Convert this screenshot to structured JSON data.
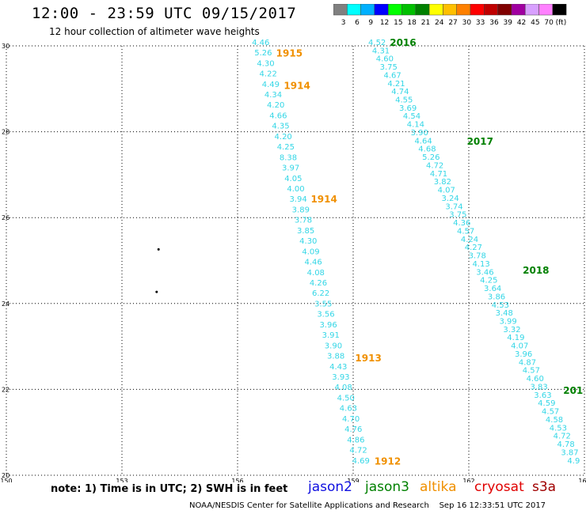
{
  "title": "12:00 - 23:59 UTC 09/15/2017",
  "subtitle": "12 hour collection of altimeter wave heights",
  "colorbar": {
    "colors": [
      "#808080",
      "#00ffff",
      "#00b0ff",
      "#0000ff",
      "#00ff00",
      "#00c000",
      "#008000",
      "#ffff00",
      "#ffc000",
      "#ff8000",
      "#ff0000",
      "#c00000",
      "#800000",
      "#a000a0",
      "#d8a0ff",
      "#ff80ff",
      "#000000"
    ],
    "labels": [
      "3",
      "6",
      "9",
      "12",
      "15",
      "18",
      "21",
      "24",
      "27",
      "30",
      "33",
      "36",
      "39",
      "42",
      "45",
      "70",
      "(ft)"
    ]
  },
  "map": {
    "lat_labels": [
      "30",
      "28",
      "26",
      "24",
      "22",
      "20"
    ],
    "lon_labels": [
      "150",
      "153",
      "156",
      "159",
      "162",
      "165"
    ],
    "lat_range": [
      20,
      30
    ],
    "lon_range": [
      150,
      165
    ],
    "grid": "dotted"
  },
  "islands": [
    {
      "lon": 153.95,
      "lat": 25.26
    },
    {
      "lon": 153.9,
      "lat": 24.27
    }
  ],
  "tracks": [
    {
      "satellite": "altika",
      "color": "#33d6e6",
      "start": {
        "lon": 156.6,
        "lat": 30.02
      },
      "end": {
        "lon": 159.2,
        "lat": 20.28
      },
      "values": [
        "4.46",
        "5.26",
        "4.30",
        "4.22",
        "4.49",
        "4.34",
        "4.20",
        "4.66",
        "4.35",
        "4.20",
        "4.25",
        "8.38",
        "3.97",
        "4.05",
        "4.00",
        "3.94",
        "3.89",
        "3.78",
        "3.85",
        "4.30",
        "4.09",
        "4.46",
        "4.08",
        "4.26",
        "6.22",
        "3.55",
        "3.56",
        "3.96",
        "3.91",
        "3.90",
        "3.88",
        "4.43",
        "3.93",
        "4.08",
        "4.50",
        "4.63",
        "4.70",
        "4.76",
        "4.86",
        "4.72",
        "4.69"
      ],
      "time_labels": [
        {
          "text": "1915",
          "lon": 157.0,
          "lat": 29.75
        },
        {
          "text": "1914",
          "lon": 157.2,
          "lat": 29.0
        },
        {
          "text": "1914",
          "lon": 157.9,
          "lat": 26.35
        },
        {
          "text": "1913",
          "lon": 159.05,
          "lat": 22.65
        },
        {
          "text": "1912",
          "lon": 159.55,
          "lat": 20.25
        }
      ],
      "time_color": "#f09000"
    },
    {
      "satellite": "jason3",
      "color": "#33d6e6",
      "start": {
        "lon": 159.62,
        "lat": 30.02
      },
      "end": {
        "lon": 164.72,
        "lat": 20.28
      },
      "values": [
        "4.52",
        "4.31",
        "4.60",
        "3.75",
        "4.67",
        "4.21",
        "4.74",
        "4.55",
        "3.69",
        "4.54",
        "4.14",
        "3.90",
        "4.64",
        "4.68",
        "5.26",
        "4.72",
        "4.71",
        "3.82",
        "4.07",
        "3.24",
        "3.74",
        "3.75",
        "4.36",
        "4.57",
        "4.24",
        "4.27",
        "3.78",
        "4.13",
        "3.46",
        "4.25",
        "3.64",
        "3.86",
        "4.53",
        "3.48",
        "3.99",
        "3.32",
        "4.19",
        "4.07",
        "3.96",
        "4.87",
        "4.57",
        "4.60",
        "3.83",
        "3.63",
        "4.59",
        "4.57",
        "4.58",
        "4.53",
        "4.72",
        "4.78",
        "3.87",
        "4.9"
      ],
      "time_labels": [
        {
          "text": "2016",
          "lon": 159.95,
          "lat": 30.0
        },
        {
          "text": "2017",
          "lon": 161.95,
          "lat": 27.7
        },
        {
          "text": "2018",
          "lon": 163.4,
          "lat": 24.7
        },
        {
          "text": "201",
          "lon": 164.45,
          "lat": 21.9
        }
      ],
      "time_color": "#008000"
    }
  ],
  "note": "note: 1) Time is in UTC; 2) SWH is in feet",
  "satellites": [
    {
      "name": "jason2",
      "color": "#1010e0"
    },
    {
      "name": "jason3",
      "color": "#008000"
    },
    {
      "name": "altika",
      "color": "#f09000"
    },
    {
      "name": "cryosat",
      "color": "#e00000"
    },
    {
      "name": "s3a",
      "color": "#a00000"
    }
  ],
  "footer": "NOAA/NESDIS Center for Satellite Applications and Research    Sep 16 12:33:51 UTC 2017"
}
